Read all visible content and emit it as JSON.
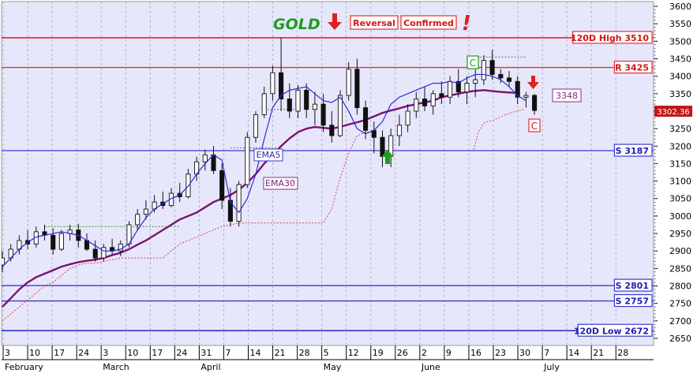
{
  "chart_data": {
    "type": "candlestick",
    "title": "GOLD",
    "annotations": {
      "reversal": "Reversal",
      "confirmed": "Confirmed",
      "exclamation": "!",
      "c_marker_1": "C",
      "c_marker_2": "C",
      "value_box": "3348",
      "last_price": "3302.36",
      "ema5_label": "EMA5",
      "ema30_label": "EMA30"
    },
    "ylim": [
      2640,
      3600
    ],
    "y_ticks": [
      2650,
      2700,
      2750,
      2800,
      2850,
      2900,
      2950,
      3000,
      3050,
      3100,
      3150,
      3200,
      3250,
      3300,
      3350,
      3400,
      3450,
      3500,
      3550,
      3600
    ],
    "x_day_ticks": [
      "3",
      "10",
      "17",
      "24",
      "3",
      "10",
      "17",
      "24",
      "31",
      "7",
      "14",
      "21",
      "28",
      "5",
      "12",
      "19",
      "26",
      "2",
      "9",
      "16",
      "23",
      "30",
      "7",
      "14",
      "21",
      "28"
    ],
    "x_month_labels": [
      {
        "label": "February",
        "tick_index": 0
      },
      {
        "label": "March",
        "tick_index": 4
      },
      {
        "label": "April",
        "tick_index": 8
      },
      {
        "label": "May",
        "tick_index": 13
      },
      {
        "label": "June",
        "tick_index": 17
      },
      {
        "label": "July",
        "tick_index": 22
      }
    ],
    "levels": [
      {
        "label": "120D High 3510",
        "value": 3510,
        "color": "#e53030"
      },
      {
        "label": "R 3425",
        "value": 3425,
        "color": "#e53030"
      },
      {
        "label": "S 3187",
        "value": 3187,
        "color": "#3a3ad0"
      },
      {
        "label": "S 2801",
        "value": 2801,
        "color": "#3a3ad0"
      },
      {
        "label": "S 2757",
        "value": 2757,
        "color": "#3a3ad0"
      },
      {
        "label": "120D Low 2672",
        "value": 2672,
        "color": "#3a3ad0"
      }
    ],
    "ema5": [
      2855,
      2880,
      2905,
      2925,
      2940,
      2945,
      2950,
      2955,
      2950,
      2945,
      2930,
      2915,
      2900,
      2900,
      2905,
      2920,
      2960,
      2995,
      3020,
      3035,
      3050,
      3060,
      3085,
      3120,
      3150,
      3175,
      3160,
      3040,
      3010,
      3050,
      3120,
      3220,
      3310,
      3345,
      3360,
      3365,
      3370,
      3350,
      3330,
      3325,
      3340,
      3300,
      3250,
      3235,
      3245,
      3270,
      3320,
      3340,
      3350,
      3360,
      3370,
      3380,
      3380,
      3385,
      3380,
      3395,
      3405,
      3405,
      3400,
      3390,
      3370,
      3345,
      3330
    ],
    "ema30": [
      2740,
      2765,
      2790,
      2810,
      2825,
      2835,
      2845,
      2855,
      2862,
      2868,
      2872,
      2875,
      2880,
      2888,
      2895,
      2905,
      2918,
      2930,
      2945,
      2960,
      2975,
      2990,
      3000,
      3010,
      3025,
      3040,
      3050,
      3060,
      3075,
      3095,
      3120,
      3150,
      3175,
      3200,
      3222,
      3240,
      3250,
      3255,
      3252,
      3250,
      3255,
      3262,
      3268,
      3275,
      3285,
      3295,
      3302,
      3308,
      3315,
      3320,
      3325,
      3330,
      3340,
      3345,
      3350,
      3355,
      3358,
      3360
    ],
    "ema30_end": [
      3355,
      3352
    ],
    "ohlc": [
      {
        "o": 2860,
        "h": 2900,
        "l": 2840,
        "c": 2880
      },
      {
        "o": 2880,
        "h": 2920,
        "l": 2870,
        "c": 2905
      },
      {
        "o": 2905,
        "h": 2945,
        "l": 2890,
        "c": 2930
      },
      {
        "o": 2930,
        "h": 2960,
        "l": 2905,
        "c": 2920
      },
      {
        "o": 2920,
        "h": 2970,
        "l": 2910,
        "c": 2955
      },
      {
        "o": 2955,
        "h": 2975,
        "l": 2930,
        "c": 2945
      },
      {
        "o": 2945,
        "h": 2965,
        "l": 2890,
        "c": 2905
      },
      {
        "o": 2905,
        "h": 2960,
        "l": 2900,
        "c": 2950
      },
      {
        "o": 2950,
        "h": 2975,
        "l": 2930,
        "c": 2960
      },
      {
        "o": 2960,
        "h": 2978,
        "l": 2910,
        "c": 2930
      },
      {
        "o": 2930,
        "h": 2950,
        "l": 2900,
        "c": 2905
      },
      {
        "o": 2905,
        "h": 2930,
        "l": 2870,
        "c": 2880
      },
      {
        "o": 2880,
        "h": 2920,
        "l": 2870,
        "c": 2910
      },
      {
        "o": 2910,
        "h": 2935,
        "l": 2890,
        "c": 2900
      },
      {
        "o": 2900,
        "h": 2930,
        "l": 2885,
        "c": 2920
      },
      {
        "o": 2920,
        "h": 2985,
        "l": 2910,
        "c": 2975
      },
      {
        "o": 2975,
        "h": 3020,
        "l": 2960,
        "c": 3005
      },
      {
        "o": 3005,
        "h": 3045,
        "l": 2990,
        "c": 3020
      },
      {
        "o": 3020,
        "h": 3060,
        "l": 3010,
        "c": 3040
      },
      {
        "o": 3040,
        "h": 3070,
        "l": 3020,
        "c": 3030
      },
      {
        "o": 3030,
        "h": 3080,
        "l": 3025,
        "c": 3065
      },
      {
        "o": 3065,
        "h": 3095,
        "l": 3040,
        "c": 3055
      },
      {
        "o": 3055,
        "h": 3135,
        "l": 3050,
        "c": 3120
      },
      {
        "o": 3120,
        "h": 3170,
        "l": 3100,
        "c": 3155
      },
      {
        "o": 3155,
        "h": 3190,
        "l": 3130,
        "c": 3175
      },
      {
        "o": 3175,
        "h": 3200,
        "l": 3120,
        "c": 3130
      },
      {
        "o": 3130,
        "h": 3150,
        "l": 3020,
        "c": 3045
      },
      {
        "o": 3045,
        "h": 3080,
        "l": 2970,
        "c": 2985
      },
      {
        "o": 2985,
        "h": 3100,
        "l": 2970,
        "c": 3090
      },
      {
        "o": 3090,
        "h": 3240,
        "l": 3080,
        "c": 3225
      },
      {
        "o": 3225,
        "h": 3300,
        "l": 3210,
        "c": 3290
      },
      {
        "o": 3290,
        "h": 3370,
        "l": 3280,
        "c": 3350
      },
      {
        "o": 3350,
        "h": 3430,
        "l": 3330,
        "c": 3410
      },
      {
        "o": 3410,
        "h": 3510,
        "l": 3300,
        "c": 3335
      },
      {
        "o": 3335,
        "h": 3380,
        "l": 3280,
        "c": 3300
      },
      {
        "o": 3300,
        "h": 3375,
        "l": 3280,
        "c": 3360
      },
      {
        "o": 3360,
        "h": 3380,
        "l": 3280,
        "c": 3305
      },
      {
        "o": 3305,
        "h": 3355,
        "l": 3260,
        "c": 3320
      },
      {
        "o": 3320,
        "h": 3350,
        "l": 3240,
        "c": 3260
      },
      {
        "o": 3260,
        "h": 3300,
        "l": 3210,
        "c": 3230
      },
      {
        "o": 3230,
        "h": 3360,
        "l": 3225,
        "c": 3345
      },
      {
        "o": 3345,
        "h": 3440,
        "l": 3330,
        "c": 3420
      },
      {
        "o": 3420,
        "h": 3450,
        "l": 3290,
        "c": 3310
      },
      {
        "o": 3310,
        "h": 3330,
        "l": 3220,
        "c": 3245
      },
      {
        "o": 3245,
        "h": 3270,
        "l": 3180,
        "c": 3225
      },
      {
        "o": 3225,
        "h": 3245,
        "l": 3140,
        "c": 3170
      },
      {
        "o": 3170,
        "h": 3250,
        "l": 3140,
        "c": 3230
      },
      {
        "o": 3230,
        "h": 3290,
        "l": 3200,
        "c": 3260
      },
      {
        "o": 3260,
        "h": 3320,
        "l": 3240,
        "c": 3300
      },
      {
        "o": 3300,
        "h": 3355,
        "l": 3280,
        "c": 3335
      },
      {
        "o": 3335,
        "h": 3370,
        "l": 3300,
        "c": 3315
      },
      {
        "o": 3315,
        "h": 3360,
        "l": 3290,
        "c": 3350
      },
      {
        "o": 3350,
        "h": 3385,
        "l": 3320,
        "c": 3340
      },
      {
        "o": 3340,
        "h": 3400,
        "l": 3320,
        "c": 3385
      },
      {
        "o": 3385,
        "h": 3420,
        "l": 3340,
        "c": 3355
      },
      {
        "o": 3355,
        "h": 3400,
        "l": 3320,
        "c": 3380
      },
      {
        "o": 3380,
        "h": 3420,
        "l": 3340,
        "c": 3390
      },
      {
        "o": 3390,
        "h": 3460,
        "l": 3375,
        "c": 3445
      },
      {
        "o": 3445,
        "h": 3475,
        "l": 3390,
        "c": 3405
      },
      {
        "o": 3405,
        "h": 3420,
        "l": 3380,
        "c": 3395
      },
      {
        "o": 3395,
        "h": 3415,
        "l": 3370,
        "c": 3385
      },
      {
        "o": 3385,
        "h": 3400,
        "l": 3320,
        "c": 3340
      },
      {
        "o": 3340,
        "h": 3355,
        "l": 3310,
        "c": 3345
      },
      {
        "o": 3345,
        "h": 3350,
        "l": 3290,
        "c": 3302
      }
    ],
    "stop_line": [
      2700,
      2720,
      2740,
      2760,
      2780,
      2800,
      2810,
      2830,
      2850,
      2860,
      2865,
      2865,
      2870,
      2875,
      2880,
      2880,
      2880,
      2880,
      2880,
      2880,
      2900,
      2920,
      2930,
      2940,
      2950,
      2960,
      2970,
      2975,
      2980,
      2980,
      2980,
      2980,
      2980,
      2980,
      2980,
      2980,
      2980,
      2980,
      2980,
      3020,
      3110,
      3180,
      3230,
      3240,
      3240
    ],
    "dotted_green_segments": [
      {
        "from": 5,
        "to": 21,
        "value": 2970
      },
      {
        "from": 27,
        "to": 33,
        "value": 3195
      },
      {
        "from": 31,
        "to": 35,
        "value": 3305
      },
      {
        "from": 44,
        "to": 51,
        "value": 3425
      },
      {
        "from": 55,
        "to": 62,
        "value": 3455
      }
    ]
  }
}
